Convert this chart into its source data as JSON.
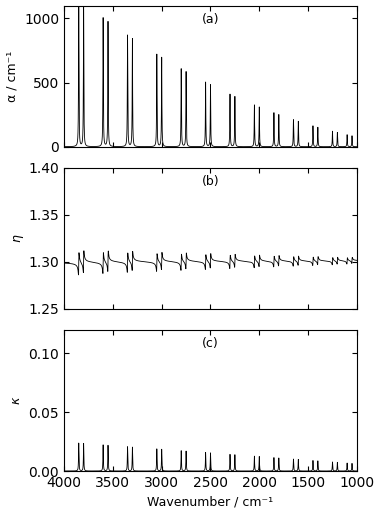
{
  "wavenumber_start": 4000,
  "wavenumber_end": 1000,
  "n_points": 50000,
  "background_n": 1.3,
  "peak_positions": [
    3850,
    3800,
    3600,
    3550,
    3350,
    3300,
    3050,
    3000,
    2800,
    2750,
    2550,
    2500,
    2300,
    2250,
    2050,
    2000,
    1850,
    1800,
    1650,
    1600,
    1450,
    1400,
    1250,
    1200,
    1100,
    1050
  ],
  "peak_widths": [
    5,
    5,
    5,
    5,
    5,
    5,
    5,
    5,
    5,
    5,
    5,
    5,
    5,
    5,
    5,
    5,
    5,
    5,
    5,
    5,
    5,
    5,
    5,
    5,
    5,
    5
  ],
  "oscillator_strengths": [
    8e-05,
    8e-05,
    8e-05,
    8e-05,
    8e-05,
    8e-05,
    8e-05,
    8e-05,
    8e-05,
    8e-05,
    8e-05,
    8e-05,
    8e-05,
    8e-05,
    8e-05,
    8e-05,
    8e-05,
    8e-05,
    8e-05,
    8e-05,
    8e-05,
    8e-05,
    8e-05,
    8e-05,
    8e-05,
    8e-05
  ],
  "ylim_a": [
    0,
    1100
  ],
  "ylim_b": [
    1.25,
    1.4
  ],
  "ylim_c": [
    0,
    0.12
  ],
  "yticks_a": [
    0,
    500,
    1000
  ],
  "yticks_b": [
    1.25,
    1.3,
    1.35,
    1.4
  ],
  "yticks_c": [
    0.0,
    0.05,
    0.1
  ],
  "xticks": [
    4000,
    3500,
    3000,
    2500,
    2000,
    1500,
    1000
  ],
  "xlabel": "Wavenumber / cm⁻¹",
  "ylabel_a": "α / cm⁻¹",
  "ylabel_b": "η",
  "ylabel_c": "κ",
  "label_a": "(a)",
  "label_b": "(b)",
  "label_c": "(c)",
  "line_color": "black",
  "line_width": 0.6,
  "fig_width": 3.8,
  "fig_height": 5.14,
  "dpi": 100
}
